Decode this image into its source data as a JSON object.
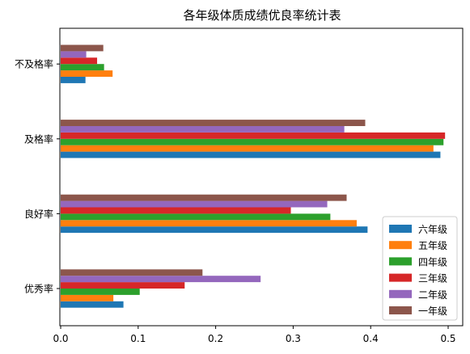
{
  "chart_data": {
    "type": "bar",
    "orientation": "horizontal",
    "title": "各年级体质成绩优良率统计表",
    "xlabel": "",
    "ylabel": "",
    "xlim": [
      0,
      0.52
    ],
    "x_ticks": [
      0.0,
      0.1,
      0.2,
      0.3,
      0.4,
      0.5
    ],
    "x_tick_labels": [
      "0.0",
      "0.1",
      "0.2",
      "0.3",
      "0.4",
      "0.5"
    ],
    "grid": false,
    "legend_position": "lower-right",
    "categories": [
      "优秀率",
      "良好率",
      "及格率",
      "不及格率"
    ],
    "series": [
      {
        "name": "六年级",
        "color": "#1f77b4",
        "values": [
          0.081,
          0.396,
          0.49,
          0.032
        ]
      },
      {
        "name": "五年级",
        "color": "#ff7f0e",
        "values": [
          0.068,
          0.382,
          0.481,
          0.067
        ]
      },
      {
        "name": "四年级",
        "color": "#2ca02c",
        "values": [
          0.102,
          0.348,
          0.494,
          0.056
        ]
      },
      {
        "name": "三年级",
        "color": "#d62728",
        "values": [
          0.16,
          0.297,
          0.496,
          0.047
        ]
      },
      {
        "name": "二年级",
        "color": "#9467bd",
        "values": [
          0.258,
          0.344,
          0.366,
          0.033
        ]
      },
      {
        "name": "一年级",
        "color": "#8c564b",
        "values": [
          0.183,
          0.369,
          0.393,
          0.055
        ]
      }
    ]
  }
}
